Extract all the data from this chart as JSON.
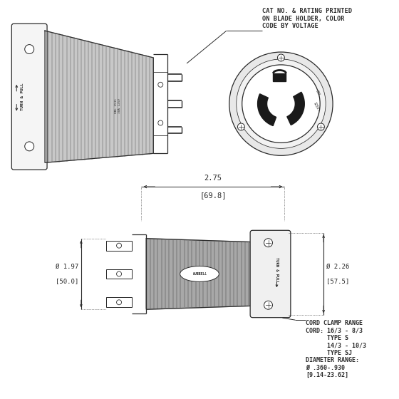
{
  "bg_color": "#ffffff",
  "line_color": "#2a2a2a",
  "annotation_text": "CAT NO. & RATING PRINTED\nON BLADE HOLDER, COLOR\nCODE BY VOLTAGE",
  "dim_275": "2.75",
  "dim_698": "[69.8]",
  "dim_197": "Ø 1.97",
  "dim_500": "[50.0]",
  "dim_226": "Ø 2.26",
  "dim_575": "[57.5]",
  "cord_clamp_text": "CORD CLAMP RANGE\nCORD: 16/3 - 8/3\n      TYPE S\n      14/3 - 10/3\n      TYPE SJ\nDIAMETER RANGE:\nØ .360-.930\n[9.14-23.62]",
  "turn_pull_text": "TURN & PULL",
  "hubbell_text": "HUBBELL"
}
